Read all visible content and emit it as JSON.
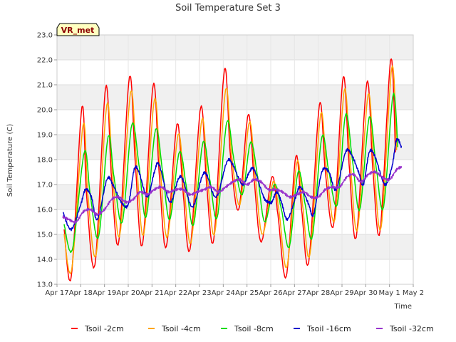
{
  "chart_data": {
    "type": "line",
    "title": "Soil Temperature Set 3",
    "xlabel": "Time",
    "ylabel": "Soil Temperature (C)",
    "ylim": [
      13.0,
      23.0
    ],
    "xlim": [
      "2024-04-17",
      "2024-05-02"
    ],
    "yticks": [
      "13.0",
      "14.0",
      "15.0",
      "16.0",
      "17.0",
      "18.0",
      "19.0",
      "20.0",
      "21.0",
      "22.0",
      "23.0"
    ],
    "xticks": [
      "Apr 17",
      "Apr 18",
      "Apr 19",
      "Apr 20",
      "Apr 21",
      "Apr 22",
      "Apr 23",
      "Apr 24",
      "Apr 25",
      "Apr 26",
      "Apr 27",
      "Apr 28",
      "Apr 29",
      "Apr 30",
      "May 1",
      "May 2"
    ],
    "grid": true,
    "legend_position": "bottom",
    "badge": "VR_met",
    "x_dates": [
      "2024-04-17",
      "2024-04-18",
      "2024-04-19",
      "2024-04-20",
      "2024-04-21",
      "2024-04-22",
      "2024-04-23",
      "2024-04-24",
      "2024-04-25",
      "2024-04-26",
      "2024-04-27",
      "2024-04-28",
      "2024-04-29",
      "2024-04-30",
      "2024-05-01",
      "2024-05-02"
    ],
    "series": [
      {
        "name": "Tsoil -2cm",
        "color": "#ff0000",
        "points": [
          [
            0.3,
            15.2
          ],
          [
            0.6,
            13.3
          ],
          [
            1.05,
            20.1
          ],
          [
            1.25,
            16.5
          ],
          [
            1.6,
            13.8
          ],
          [
            2.05,
            20.9
          ],
          [
            2.3,
            17.2
          ],
          [
            2.6,
            14.7
          ],
          [
            3.05,
            21.3
          ],
          [
            3.3,
            17.8
          ],
          [
            3.6,
            14.6
          ],
          [
            4.05,
            21.0
          ],
          [
            4.3,
            17.5
          ],
          [
            4.6,
            14.5
          ],
          [
            5.05,
            19.4
          ],
          [
            5.3,
            16.8
          ],
          [
            5.6,
            14.4
          ],
          [
            6.05,
            20.1
          ],
          [
            6.3,
            17.0
          ],
          [
            6.6,
            14.8
          ],
          [
            7.05,
            21.6
          ],
          [
            7.3,
            18.2
          ],
          [
            7.65,
            16.0
          ],
          [
            8.05,
            19.8
          ],
          [
            8.3,
            17.2
          ],
          [
            8.6,
            14.7
          ],
          [
            9.05,
            17.3
          ],
          [
            9.3,
            15.8
          ],
          [
            9.65,
            13.3
          ],
          [
            10.05,
            18.1
          ],
          [
            10.3,
            16.0
          ],
          [
            10.6,
            13.9
          ],
          [
            11.05,
            20.2
          ],
          [
            11.3,
            17.5
          ],
          [
            11.65,
            15.4
          ],
          [
            12.05,
            21.3
          ],
          [
            12.3,
            17.8
          ],
          [
            12.6,
            14.9
          ],
          [
            13.05,
            21.1
          ],
          [
            13.3,
            17.6
          ],
          [
            13.6,
            15.1
          ],
          [
            14.05,
            22.0
          ],
          [
            14.25,
            18.3
          ]
        ]
      },
      {
        "name": "Tsoil -4cm",
        "color": "#ffa500",
        "points": [
          [
            0.3,
            15.0
          ],
          [
            0.62,
            13.6
          ],
          [
            1.1,
            19.4
          ],
          [
            1.3,
            16.6
          ],
          [
            1.65,
            14.2
          ],
          [
            2.1,
            20.2
          ],
          [
            2.35,
            17.3
          ],
          [
            2.65,
            15.0
          ],
          [
            3.1,
            20.7
          ],
          [
            3.35,
            17.9
          ],
          [
            3.65,
            15.0
          ],
          [
            4.1,
            20.4
          ],
          [
            4.35,
            17.6
          ],
          [
            4.65,
            14.9
          ],
          [
            5.1,
            19.0
          ],
          [
            5.35,
            16.9
          ],
          [
            5.65,
            14.7
          ],
          [
            6.1,
            19.6
          ],
          [
            6.35,
            17.1
          ],
          [
            6.65,
            15.1
          ],
          [
            7.1,
            20.8
          ],
          [
            7.35,
            18.2
          ],
          [
            7.7,
            16.2
          ],
          [
            8.1,
            19.5
          ],
          [
            8.35,
            17.3
          ],
          [
            8.65,
            15.0
          ],
          [
            9.1,
            17.1
          ],
          [
            9.35,
            15.9
          ],
          [
            9.68,
            13.7
          ],
          [
            10.1,
            17.9
          ],
          [
            10.35,
            16.1
          ],
          [
            10.65,
            14.2
          ],
          [
            11.1,
            19.8
          ],
          [
            11.35,
            17.6
          ],
          [
            11.7,
            15.6
          ],
          [
            12.1,
            20.8
          ],
          [
            12.35,
            17.9
          ],
          [
            12.65,
            15.2
          ],
          [
            13.1,
            20.6
          ],
          [
            13.35,
            17.7
          ],
          [
            13.65,
            15.3
          ],
          [
            14.1,
            21.7
          ],
          [
            14.3,
            18.4
          ]
        ]
      },
      {
        "name": "Tsoil -8cm",
        "color": "#00dd00",
        "points": [
          [
            0.3,
            15.4
          ],
          [
            0.65,
            14.4
          ],
          [
            1.15,
            18.3
          ],
          [
            1.4,
            16.6
          ],
          [
            1.75,
            14.9
          ],
          [
            2.15,
            18.9
          ],
          [
            2.4,
            17.3
          ],
          [
            2.75,
            15.5
          ],
          [
            3.15,
            19.4
          ],
          [
            3.45,
            17.8
          ],
          [
            3.75,
            15.7
          ],
          [
            4.15,
            19.2
          ],
          [
            4.45,
            17.5
          ],
          [
            4.75,
            15.6
          ],
          [
            5.15,
            18.3
          ],
          [
            5.45,
            16.9
          ],
          [
            5.75,
            15.4
          ],
          [
            6.15,
            18.7
          ],
          [
            6.45,
            17.1
          ],
          [
            6.75,
            15.7
          ],
          [
            7.15,
            19.5
          ],
          [
            7.45,
            18.0
          ],
          [
            7.8,
            16.6
          ],
          [
            8.15,
            18.7
          ],
          [
            8.45,
            17.3
          ],
          [
            8.75,
            15.5
          ],
          [
            9.15,
            17.0
          ],
          [
            9.45,
            16.0
          ],
          [
            9.78,
            14.5
          ],
          [
            10.15,
            17.5
          ],
          [
            10.45,
            16.2
          ],
          [
            10.75,
            14.9
          ],
          [
            11.15,
            18.9
          ],
          [
            11.45,
            17.5
          ],
          [
            11.8,
            16.2
          ],
          [
            12.15,
            19.8
          ],
          [
            12.45,
            17.9
          ],
          [
            12.75,
            16.0
          ],
          [
            13.15,
            19.7
          ],
          [
            13.45,
            17.6
          ],
          [
            13.75,
            16.1
          ],
          [
            14.15,
            20.6
          ],
          [
            14.35,
            18.5
          ]
        ]
      },
      {
        "name": "Tsoil -16cm",
        "color": "#0000cc",
        "points": [
          [
            0.25,
            15.9
          ],
          [
            0.6,
            15.2
          ],
          [
            1.0,
            16.2
          ],
          [
            1.2,
            16.8
          ],
          [
            1.45,
            16.5
          ],
          [
            1.7,
            15.6
          ],
          [
            2.1,
            17.2
          ],
          [
            2.35,
            17.0
          ],
          [
            2.7,
            16.3
          ],
          [
            3.0,
            16.2
          ],
          [
            3.25,
            17.6
          ],
          [
            3.45,
            17.5
          ],
          [
            3.8,
            16.5
          ],
          [
            4.1,
            17.5
          ],
          [
            4.3,
            17.8
          ],
          [
            4.75,
            16.3
          ],
          [
            5.1,
            17.2
          ],
          [
            5.3,
            17.2
          ],
          [
            5.7,
            16.1
          ],
          [
            6.1,
            17.3
          ],
          [
            6.3,
            17.4
          ],
          [
            6.7,
            16.5
          ],
          [
            7.15,
            17.9
          ],
          [
            7.4,
            17.8
          ],
          [
            7.8,
            17.0
          ],
          [
            8.1,
            17.5
          ],
          [
            8.3,
            17.6
          ],
          [
            8.7,
            16.5
          ],
          [
            8.9,
            16.3
          ],
          [
            9.05,
            16.3
          ],
          [
            9.25,
            16.7
          ],
          [
            9.45,
            16.3
          ],
          [
            9.7,
            15.6
          ],
          [
            10.05,
            16.5
          ],
          [
            10.25,
            16.9
          ],
          [
            10.6,
            16.2
          ],
          [
            10.8,
            15.8
          ],
          [
            11.15,
            17.5
          ],
          [
            11.45,
            17.5
          ],
          [
            11.75,
            16.8
          ],
          [
            12.15,
            18.3
          ],
          [
            12.4,
            18.2
          ],
          [
            12.7,
            17.5
          ],
          [
            12.9,
            17.0
          ],
          [
            13.15,
            18.3
          ],
          [
            13.4,
            18.1
          ],
          [
            13.8,
            17.0
          ],
          [
            14.1,
            17.7
          ],
          [
            14.3,
            18.8
          ],
          [
            14.5,
            18.5
          ]
        ]
      },
      {
        "name": "Tsoil -32cm",
        "color": "#9933cc",
        "points": [
          [
            0.25,
            15.7
          ],
          [
            0.5,
            15.6
          ],
          [
            0.8,
            15.5
          ],
          [
            1.1,
            15.9
          ],
          [
            1.4,
            16.0
          ],
          [
            1.7,
            15.8
          ],
          [
            2.0,
            16.0
          ],
          [
            2.3,
            16.4
          ],
          [
            2.6,
            16.5
          ],
          [
            2.9,
            16.3
          ],
          [
            3.2,
            16.4
          ],
          [
            3.5,
            16.7
          ],
          [
            3.8,
            16.6
          ],
          [
            4.1,
            16.8
          ],
          [
            4.4,
            16.9
          ],
          [
            4.7,
            16.7
          ],
          [
            5.0,
            16.8
          ],
          [
            5.3,
            16.8
          ],
          [
            5.6,
            16.6
          ],
          [
            5.9,
            16.7
          ],
          [
            6.2,
            16.8
          ],
          [
            6.5,
            16.9
          ],
          [
            6.8,
            16.7
          ],
          [
            7.1,
            16.9
          ],
          [
            7.4,
            17.1
          ],
          [
            7.7,
            17.2
          ],
          [
            8.0,
            17.0
          ],
          [
            8.3,
            17.2
          ],
          [
            8.6,
            17.1
          ],
          [
            8.9,
            16.8
          ],
          [
            9.2,
            16.8
          ],
          [
            9.5,
            16.7
          ],
          [
            9.8,
            16.5
          ],
          [
            10.1,
            16.6
          ],
          [
            10.4,
            16.7
          ],
          [
            10.7,
            16.5
          ],
          [
            11.0,
            16.5
          ],
          [
            11.3,
            16.8
          ],
          [
            11.6,
            16.9
          ],
          [
            11.9,
            16.9
          ],
          [
            12.2,
            17.3
          ],
          [
            12.5,
            17.4
          ],
          [
            12.8,
            17.1
          ],
          [
            13.1,
            17.4
          ],
          [
            13.4,
            17.5
          ],
          [
            13.7,
            17.3
          ],
          [
            14.0,
            17.2
          ],
          [
            14.3,
            17.6
          ],
          [
            14.5,
            17.7
          ]
        ]
      }
    ]
  }
}
